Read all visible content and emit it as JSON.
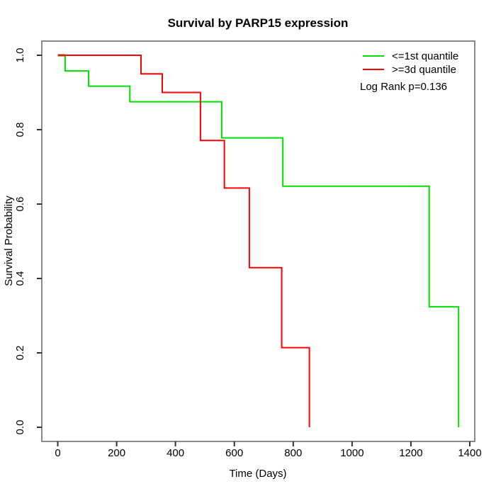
{
  "chart_data": {
    "type": "line",
    "subtype": "kaplan-meier-step",
    "title": "Survival by PARP15 expression",
    "xlabel": "Time (Days)",
    "ylabel": "Survival Probability",
    "xlim": [
      0,
      1400
    ],
    "ylim": [
      0.0,
      1.0
    ],
    "x_ticks": [
      0,
      200,
      400,
      600,
      800,
      1000,
      1200,
      1400
    ],
    "x_tick_labels": [
      "0",
      "200",
      "400",
      "600",
      "800",
      "1000",
      "1200",
      "1400"
    ],
    "y_ticks": [
      0.0,
      0.2,
      0.4,
      0.6,
      0.8,
      1.0
    ],
    "y_tick_labels": [
      "0.0",
      "0.2",
      "0.4",
      "0.6",
      "0.8",
      "1.0"
    ],
    "grid": false,
    "legend_position": "top-right",
    "annotation": "Log Rank p=0.136",
    "series": [
      {
        "name": "<=1st quantile",
        "color": "#00E000",
        "x": [
          0,
          25,
          105,
          245,
          557,
          765,
          1262,
          1362
        ],
        "y": [
          1.0,
          0.958,
          0.917,
          0.875,
          0.778,
          0.648,
          0.324,
          0.0
        ]
      },
      {
        "name": ">=3d quantile",
        "color": "#FF0000",
        "x": [
          0,
          283,
          355,
          485,
          566,
          651,
          761,
          855
        ],
        "y": [
          1.0,
          0.95,
          0.9,
          0.771,
          0.643,
          0.429,
          0.214,
          0.0
        ]
      }
    ],
    "overlap_segment": {
      "color": "#B33305",
      "x": [
        0,
        26
      ],
      "y": 1.0
    }
  }
}
